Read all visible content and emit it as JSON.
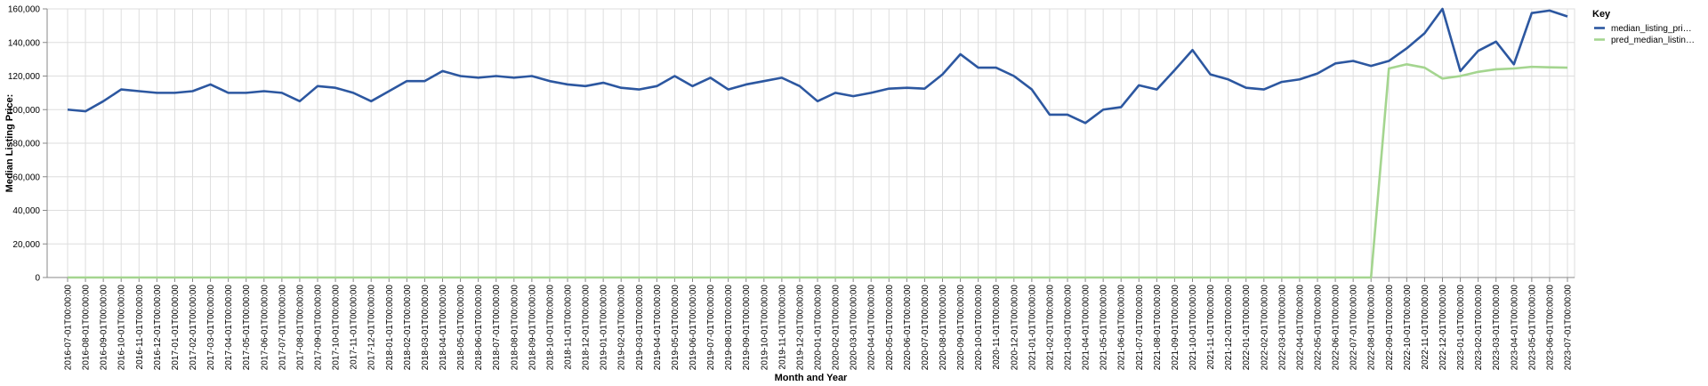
{
  "chart_data": {
    "type": "line",
    "title": "",
    "xlabel": "Month and Year",
    "ylabel": "Median Listing Price:",
    "ylim": [
      0,
      160000
    ],
    "yticks": [
      0,
      20000,
      40000,
      60000,
      80000,
      100000,
      120000,
      140000,
      160000
    ],
    "ytick_labels": [
      "0",
      "20,000",
      "40,000",
      "60,000",
      "80,000",
      "100,000",
      "120,000",
      "140,000",
      "160,000"
    ],
    "grid": true,
    "legend_title": "Key",
    "legend_position": "right",
    "x": [
      "2016-07-01T00:00:00",
      "2016-08-01T00:00:00",
      "2016-09-01T00:00:00",
      "2016-10-01T00:00:00",
      "2016-11-01T00:00:00",
      "2016-12-01T00:00:00",
      "2017-01-01T00:00:00",
      "2017-02-01T00:00:00",
      "2017-03-01T00:00:00",
      "2017-04-01T00:00:00",
      "2017-05-01T00:00:00",
      "2017-06-01T00:00:00",
      "2017-07-01T00:00:00",
      "2017-08-01T00:00:00",
      "2017-09-01T00:00:00",
      "2017-10-01T00:00:00",
      "2017-11-01T00:00:00",
      "2017-12-01T00:00:00",
      "2018-01-01T00:00:00",
      "2018-02-01T00:00:00",
      "2018-03-01T00:00:00",
      "2018-04-01T00:00:00",
      "2018-05-01T00:00:00",
      "2018-06-01T00:00:00",
      "2018-07-01T00:00:00",
      "2018-08-01T00:00:00",
      "2018-09-01T00:00:00",
      "2018-10-01T00:00:00",
      "2018-11-01T00:00:00",
      "2018-12-01T00:00:00",
      "2019-01-01T00:00:00",
      "2019-02-01T00:00:00",
      "2019-03-01T00:00:00",
      "2019-04-01T00:00:00",
      "2019-05-01T00:00:00",
      "2019-06-01T00:00:00",
      "2019-07-01T00:00:00",
      "2019-08-01T00:00:00",
      "2019-09-01T00:00:00",
      "2019-10-01T00:00:00",
      "2019-11-01T00:00:00",
      "2019-12-01T00:00:00",
      "2020-01-01T00:00:00",
      "2020-02-01T00:00:00",
      "2020-03-01T00:00:00",
      "2020-04-01T00:00:00",
      "2020-05-01T00:00:00",
      "2020-06-01T00:00:00",
      "2020-07-01T00:00:00",
      "2020-08-01T00:00:00",
      "2020-09-01T00:00:00",
      "2020-10-01T00:00:00",
      "2020-11-01T00:00:00",
      "2020-12-01T00:00:00",
      "2021-01-01T00:00:00",
      "2021-02-01T00:00:00",
      "2021-03-01T00:00:00",
      "2021-04-01T00:00:00",
      "2021-05-01T00:00:00",
      "2021-06-01T00:00:00",
      "2021-07-01T00:00:00",
      "2021-08-01T00:00:00",
      "2021-09-01T00:00:00",
      "2021-10-01T00:00:00",
      "2021-11-01T00:00:00",
      "2021-12-01T00:00:00",
      "2022-01-01T00:00:00",
      "2022-02-01T00:00:00",
      "2022-03-01T00:00:00",
      "2022-04-01T00:00:00",
      "2022-05-01T00:00:00",
      "2022-06-01T00:00:00",
      "2022-07-01T00:00:00",
      "2022-08-01T00:00:00",
      "2022-09-01T00:00:00",
      "2022-10-01T00:00:00",
      "2022-11-01T00:00:00",
      "2022-12-01T00:00:00",
      "2023-01-01T00:00:00",
      "2023-02-01T00:00:00",
      "2023-03-01T00:00:00",
      "2023-04-01T00:00:00",
      "2023-05-01T00:00:00",
      "2023-06-01T00:00:00",
      "2023-07-01T00:00:00"
    ],
    "series": [
      {
        "name": "median_listing_pri…",
        "color": "#2c57a0",
        "values": [
          100000,
          99000,
          105000,
          112000,
          111000,
          110000,
          110000,
          111000,
          115000,
          110000,
          110000,
          111000,
          110000,
          105000,
          114000,
          113000,
          110000,
          105000,
          111000,
          117000,
          117000,
          123000,
          120000,
          119000,
          120000,
          119000,
          120000,
          117000,
          115000,
          114000,
          116000,
          113000,
          112000,
          114000,
          120000,
          114000,
          119000,
          112000,
          115000,
          117000,
          119000,
          114000,
          105000,
          110000,
          108000,
          110000,
          112500,
          113000,
          112500,
          121000,
          133000,
          125000,
          125000,
          120000,
          112000,
          97000,
          97000,
          92000,
          100000,
          101500,
          114500,
          112000,
          123500,
          135500,
          121000,
          118000,
          113000,
          112000,
          116500,
          118000,
          121500,
          127500,
          129000,
          126000,
          129000,
          136500,
          145500,
          160000,
          123000,
          135000,
          140500,
          127000,
          157500,
          159000,
          155500
        ]
      },
      {
        "name": "pred_median_listin…",
        "color": "#a4d58f",
        "values": [
          0,
          0,
          0,
          0,
          0,
          0,
          0,
          0,
          0,
          0,
          0,
          0,
          0,
          0,
          0,
          0,
          0,
          0,
          0,
          0,
          0,
          0,
          0,
          0,
          0,
          0,
          0,
          0,
          0,
          0,
          0,
          0,
          0,
          0,
          0,
          0,
          0,
          0,
          0,
          0,
          0,
          0,
          0,
          0,
          0,
          0,
          0,
          0,
          0,
          0,
          0,
          0,
          0,
          0,
          0,
          0,
          0,
          0,
          0,
          0,
          0,
          0,
          0,
          0,
          0,
          0,
          0,
          0,
          0,
          0,
          0,
          0,
          0,
          0,
          124500,
          127000,
          125000,
          118500,
          120000,
          122500,
          124000,
          124500,
          125500,
          125200,
          125000
        ]
      }
    ]
  }
}
